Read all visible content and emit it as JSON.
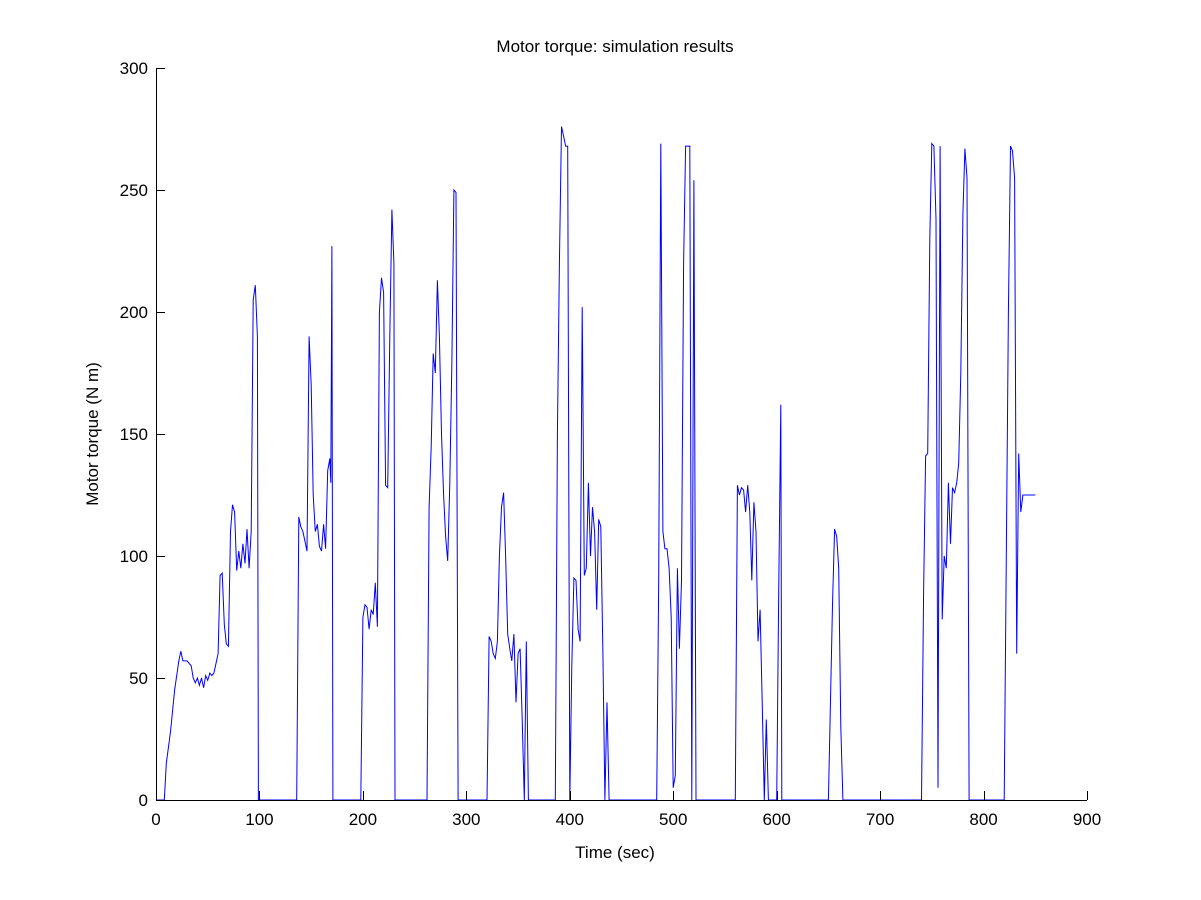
{
  "chart_data": {
    "type": "line",
    "title": "Motor torque: simulation results",
    "xlabel": "Time (sec)",
    "ylabel": "Motor torque (N m)",
    "xlim": [
      0,
      900
    ],
    "ylim": [
      0,
      300
    ],
    "xticks": [
      0,
      100,
      200,
      300,
      400,
      500,
      600,
      700,
      800,
      900
    ],
    "yticks": [
      0,
      50,
      100,
      150,
      200,
      250,
      300
    ],
    "grid": false,
    "line_color": "#0000ff",
    "series": [
      {
        "points": [
          [
            0,
            0
          ],
          [
            8,
            0
          ],
          [
            10,
            15
          ],
          [
            14,
            28
          ],
          [
            18,
            45
          ],
          [
            22,
            57
          ],
          [
            24,
            61
          ],
          [
            26,
            57
          ],
          [
            30,
            57
          ],
          [
            34,
            55
          ],
          [
            36,
            50
          ],
          [
            38,
            48
          ],
          [
            40,
            50
          ],
          [
            42,
            47
          ],
          [
            44,
            50
          ],
          [
            46,
            46
          ],
          [
            48,
            51
          ],
          [
            50,
            49
          ],
          [
            52,
            52
          ],
          [
            54,
            51
          ],
          [
            56,
            52
          ],
          [
            58,
            56
          ],
          [
            60,
            60
          ],
          [
            62,
            92
          ],
          [
            64,
            93
          ],
          [
            66,
            72
          ],
          [
            68,
            64
          ],
          [
            70,
            63
          ],
          [
            72,
            110
          ],
          [
            74,
            121
          ],
          [
            76,
            118
          ],
          [
            78,
            94
          ],
          [
            80,
            102
          ],
          [
            82,
            95
          ],
          [
            84,
            105
          ],
          [
            86,
            97
          ],
          [
            88,
            111
          ],
          [
            90,
            95
          ],
          [
            92,
            110
          ],
          [
            94,
            205
          ],
          [
            96,
            211
          ],
          [
            98,
            190
          ],
          [
            99,
            0
          ],
          [
            100,
            0
          ],
          [
            136,
            0
          ],
          [
            138,
            116
          ],
          [
            140,
            112
          ],
          [
            142,
            110
          ],
          [
            144,
            106
          ],
          [
            146,
            102
          ],
          [
            148,
            190
          ],
          [
            150,
            170
          ],
          [
            152,
            125
          ],
          [
            154,
            110
          ],
          [
            156,
            113
          ],
          [
            158,
            104
          ],
          [
            160,
            102
          ],
          [
            162,
            113
          ],
          [
            164,
            103
          ],
          [
            166,
            135
          ],
          [
            168,
            140
          ],
          [
            169,
            130
          ],
          [
            170,
            227
          ],
          [
            171,
            0
          ],
          [
            172,
            0
          ],
          [
            198,
            0
          ],
          [
            200,
            75
          ],
          [
            202,
            80
          ],
          [
            204,
            79
          ],
          [
            206,
            70
          ],
          [
            208,
            78
          ],
          [
            210,
            76
          ],
          [
            212,
            89
          ],
          [
            214,
            71
          ],
          [
            216,
            200
          ],
          [
            218,
            214
          ],
          [
            220,
            208
          ],
          [
            222,
            129
          ],
          [
            224,
            128
          ],
          [
            226,
            190
          ],
          [
            228,
            242
          ],
          [
            230,
            220
          ],
          [
            231,
            0
          ],
          [
            232,
            0
          ],
          [
            262,
            0
          ],
          [
            264,
            120
          ],
          [
            266,
            145
          ],
          [
            268,
            183
          ],
          [
            270,
            175
          ],
          [
            272,
            213
          ],
          [
            274,
            190
          ],
          [
            276,
            150
          ],
          [
            278,
            125
          ],
          [
            280,
            108
          ],
          [
            282,
            98
          ],
          [
            284,
            130
          ],
          [
            286,
            180
          ],
          [
            288,
            250
          ],
          [
            290,
            249
          ],
          [
            292,
            0
          ],
          [
            293,
            0
          ],
          [
            320,
            0
          ],
          [
            322,
            67
          ],
          [
            324,
            65
          ],
          [
            326,
            60
          ],
          [
            328,
            58
          ],
          [
            330,
            65
          ],
          [
            332,
            100
          ],
          [
            334,
            120
          ],
          [
            336,
            126
          ],
          [
            338,
            100
          ],
          [
            340,
            68
          ],
          [
            342,
            62
          ],
          [
            344,
            57
          ],
          [
            346,
            68
          ],
          [
            348,
            40
          ],
          [
            350,
            60
          ],
          [
            352,
            62
          ],
          [
            354,
            33
          ],
          [
            356,
            0
          ],
          [
            358,
            65
          ],
          [
            360,
            0
          ],
          [
            386,
            0
          ],
          [
            388,
            150
          ],
          [
            390,
            220
          ],
          [
            392,
            276
          ],
          [
            394,
            272
          ],
          [
            396,
            268
          ],
          [
            398,
            268
          ],
          [
            400,
            0
          ],
          [
            402,
            55
          ],
          [
            404,
            91
          ],
          [
            406,
            90
          ],
          [
            408,
            70
          ],
          [
            410,
            65
          ],
          [
            412,
            202
          ],
          [
            414,
            92
          ],
          [
            416,
            95
          ],
          [
            418,
            130
          ],
          [
            420,
            100
          ],
          [
            422,
            120
          ],
          [
            424,
            110
          ],
          [
            426,
            78
          ],
          [
            428,
            115
          ],
          [
            430,
            112
          ],
          [
            432,
            60
          ],
          [
            434,
            0
          ],
          [
            436,
            40
          ],
          [
            438,
            0
          ],
          [
            484,
            0
          ],
          [
            486,
            90
          ],
          [
            488,
            269
          ],
          [
            490,
            110
          ],
          [
            492,
            103
          ],
          [
            494,
            103
          ],
          [
            496,
            95
          ],
          [
            498,
            75
          ],
          [
            500,
            5
          ],
          [
            502,
            10
          ],
          [
            504,
            95
          ],
          [
            506,
            62
          ],
          [
            508,
            90
          ],
          [
            510,
            220
          ],
          [
            512,
            268
          ],
          [
            514,
            268
          ],
          [
            516,
            268
          ],
          [
            518,
            0
          ],
          [
            520,
            254
          ],
          [
            522,
            0
          ],
          [
            560,
            0
          ],
          [
            562,
            129
          ],
          [
            564,
            125
          ],
          [
            566,
            128
          ],
          [
            568,
            127
          ],
          [
            570,
            118
          ],
          [
            572,
            129
          ],
          [
            574,
            118
          ],
          [
            576,
            90
          ],
          [
            578,
            122
          ],
          [
            580,
            110
          ],
          [
            582,
            65
          ],
          [
            584,
            78
          ],
          [
            586,
            40
          ],
          [
            588,
            0
          ],
          [
            590,
            33
          ],
          [
            592,
            0
          ],
          [
            600,
            0
          ],
          [
            602,
            85
          ],
          [
            604,
            162
          ],
          [
            605,
            0
          ],
          [
            650,
            0
          ],
          [
            654,
            80
          ],
          [
            656,
            111
          ],
          [
            658,
            108
          ],
          [
            660,
            95
          ],
          [
            662,
            30
          ],
          [
            664,
            0
          ],
          [
            740,
            0
          ],
          [
            742,
            85
          ],
          [
            744,
            141
          ],
          [
            746,
            142
          ],
          [
            748,
            230
          ],
          [
            750,
            269
          ],
          [
            752,
            268
          ],
          [
            754,
            238
          ],
          [
            756,
            5
          ],
          [
            758,
            268
          ],
          [
            760,
            74
          ],
          [
            762,
            100
          ],
          [
            764,
            95
          ],
          [
            766,
            130
          ],
          [
            768,
            105
          ],
          [
            770,
            128
          ],
          [
            772,
            126
          ],
          [
            774,
            130
          ],
          [
            776,
            138
          ],
          [
            778,
            175
          ],
          [
            780,
            240
          ],
          [
            782,
            267
          ],
          [
            784,
            255
          ],
          [
            786,
            0
          ],
          [
            820,
            0
          ],
          [
            822,
            100
          ],
          [
            824,
            200
          ],
          [
            826,
            268
          ],
          [
            828,
            266
          ],
          [
            830,
            255
          ],
          [
            832,
            60
          ],
          [
            834,
            142
          ],
          [
            836,
            118
          ],
          [
            838,
            125
          ],
          [
            850,
            125
          ]
        ]
      }
    ]
  }
}
